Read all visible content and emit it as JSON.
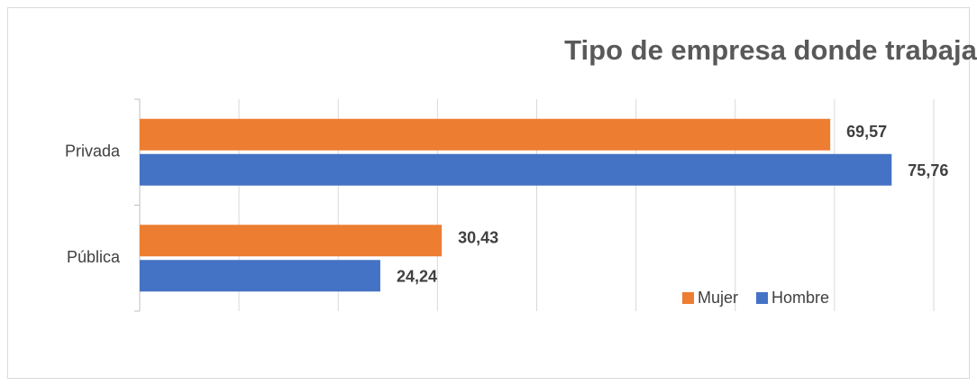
{
  "chart_data": {
    "type": "hbar",
    "title": "Tipo de empresa donde trabaja",
    "categories": [
      "Privada",
      "Pública"
    ],
    "series": [
      {
        "name": "Mujer",
        "color": "#ED7D31",
        "values": [
          69.57,
          30.43
        ],
        "value_labels": [
          "69,57",
          "30,43"
        ]
      },
      {
        "name": "Hombre",
        "color": "#4472C4",
        "values": [
          75.76,
          24.24
        ],
        "value_labels": [
          "75,76",
          "24,24"
        ]
      }
    ],
    "xlim": [
      0,
      80
    ],
    "xticks": [
      0,
      10,
      20,
      30,
      40,
      50,
      60,
      70,
      80
    ],
    "grid": true,
    "legend": "bottom-right"
  }
}
